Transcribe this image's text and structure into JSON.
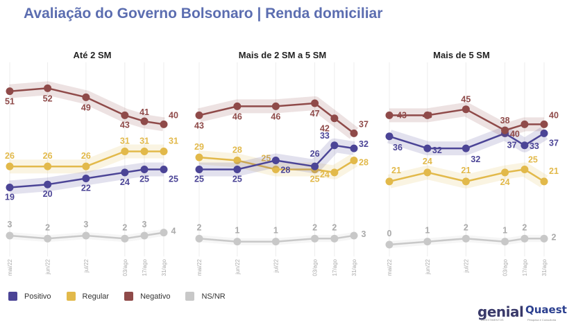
{
  "title": "Avaliação do Governo Bolsonaro | Renda domiciliar",
  "legend": [
    {
      "label": "Positivo",
      "color": "#4b4496"
    },
    {
      "label": "Regular",
      "color": "#e2b94a"
    },
    {
      "label": "Negativo",
      "color": "#8f4a49"
    },
    {
      "label": "NS/NR",
      "color": "#c8c8c8"
    }
  ],
  "logos": {
    "left": "genial",
    "left_sub": "INVESTIMENTOS",
    "right": "Quaest",
    "right_sub": "Pesquisa e Consultoria"
  },
  "chart_data": [
    {
      "type": "line",
      "title": "Até 2 SM",
      "x": [
        "mai/22",
        "jun/22",
        "jul/22",
        "03/ago",
        "17/ago",
        "31/ago"
      ],
      "series": [
        {
          "name": "Positivo",
          "values": [
            19,
            20,
            22,
            24,
            25,
            25
          ]
        },
        {
          "name": "Regular",
          "values": [
            26,
            26,
            26,
            31,
            31,
            31
          ]
        },
        {
          "name": "Negativo",
          "values": [
            51,
            52,
            49,
            43,
            41,
            40
          ]
        },
        {
          "name": "NS/NR",
          "values": [
            3,
            2,
            3,
            2,
            3,
            4
          ]
        }
      ]
    },
    {
      "type": "line",
      "title": "Mais de 2 SM a 5 SM",
      "x": [
        "mai/22",
        "jun/22",
        "jul/22",
        "03/ago",
        "17/ago",
        "31/ago"
      ],
      "series": [
        {
          "name": "Positivo",
          "values": [
            25,
            25,
            28,
            26,
            33,
            32
          ]
        },
        {
          "name": "Regular",
          "values": [
            29,
            28,
            25,
            25,
            24,
            28
          ]
        },
        {
          "name": "Negativo",
          "values": [
            43,
            46,
            46,
            47,
            42,
            37
          ]
        },
        {
          "name": "NS/NR",
          "values": [
            2,
            1,
            1,
            2,
            2,
            3
          ]
        }
      ]
    },
    {
      "type": "line",
      "title": "Mais de 5 SM",
      "x": [
        "mai/22",
        "jun/22",
        "jul/22",
        "03/ago",
        "17/ago",
        "31/ago"
      ],
      "series": [
        {
          "name": "Positivo",
          "values": [
            36,
            32,
            32,
            37,
            33,
            37
          ]
        },
        {
          "name": "Regular",
          "values": [
            21,
            24,
            21,
            24,
            25,
            21
          ]
        },
        {
          "name": "Negativo",
          "values": [
            43,
            43,
            45,
            38,
            40,
            40
          ]
        },
        {
          "name": "NS/NR",
          "values": [
            0,
            1,
            2,
            1,
            2,
            2
          ]
        }
      ]
    }
  ]
}
